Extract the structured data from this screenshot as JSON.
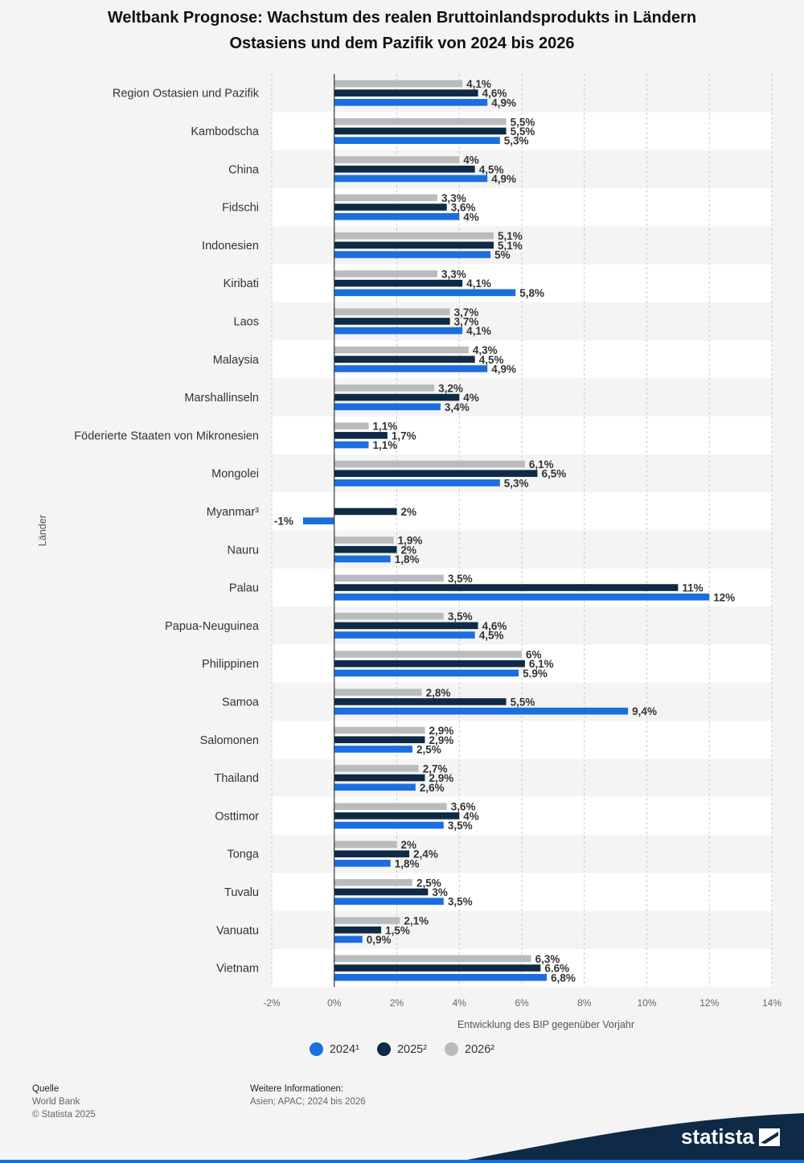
{
  "header": {
    "title_line1": "Weltbank Prognose: Wachstum des realen Bruttoinlandsprodukts in Ländern",
    "title_line2": "Ostasiens und dem Pazifik von 2024 bis 2026"
  },
  "chart_data": {
    "type": "bar",
    "orientation": "horizontal",
    "ylabel": "Länder",
    "xlabel": "Entwicklung des BIP gegenüber Vorjahr",
    "xlim": [
      -2,
      14
    ],
    "xticks": [
      "-2%",
      "0%",
      "2%",
      "4%",
      "6%",
      "8%",
      "10%",
      "12%",
      "14%"
    ],
    "grid": true,
    "legend_position": "bottom",
    "categories": [
      "Region Ostasien und Pazifik",
      "Kambodscha",
      "China",
      "Fidschi",
      "Indonesien",
      "Kiribati",
      "Laos",
      "Malaysia",
      "Marshallinseln",
      "Föderierte Staaten von Mikronesien",
      "Mongolei",
      "Myanmar³",
      "Nauru",
      "Palau",
      "Papua-Neuguinea",
      "Philippinen",
      "Samoa",
      "Salomonen",
      "Thailand",
      "Osttimor",
      "Tonga",
      "Tuvalu",
      "Vanuatu",
      "Vietnam"
    ],
    "series": [
      {
        "name": "2026²",
        "color": "#b9bcbf",
        "values": [
          4.1,
          5.5,
          4,
          3.3,
          5.1,
          3.3,
          3.7,
          4.3,
          3.2,
          1.1,
          6.1,
          null,
          1.9,
          3.5,
          3.5,
          6,
          2.8,
          2.9,
          2.7,
          3.6,
          2,
          2.5,
          2.1,
          6.3
        ],
        "labels": [
          "4,1%",
          "5,5%",
          "4%",
          "3,3%",
          "5,1%",
          "3,3%",
          "3,7%",
          "4,3%",
          "3,2%",
          "1,1%",
          "6,1%",
          "",
          "1,9%",
          "3,5%",
          "3,5%",
          "6%",
          "2,8%",
          "2,9%",
          "2,7%",
          "3,6%",
          "2%",
          "2,5%",
          "2,1%",
          "6,3%"
        ]
      },
      {
        "name": "2025²",
        "color": "#0e2a47",
        "values": [
          4.6,
          5.5,
          4.5,
          3.6,
          5.1,
          4.1,
          3.7,
          4.5,
          4,
          1.7,
          6.5,
          2,
          2,
          11,
          4.6,
          6.1,
          5.5,
          2.9,
          2.9,
          4,
          2.4,
          3,
          1.5,
          6.6
        ],
        "labels": [
          "4,6%",
          "5,5%",
          "4,5%",
          "3,6%",
          "5,1%",
          "4,1%",
          "3,7%",
          "4,5%",
          "4%",
          "1,7%",
          "6,5%",
          "2%",
          "2%",
          "11%",
          "4,6%",
          "6,1%",
          "5,5%",
          "2,9%",
          "2,9%",
          "4%",
          "2,4%",
          "3%",
          "1,5%",
          "6.6%"
        ]
      },
      {
        "name": "2024¹",
        "color": "#1a6ee0",
        "values": [
          4.9,
          5.3,
          4.9,
          4,
          5,
          5.8,
          4.1,
          4.9,
          3.4,
          1.1,
          5.3,
          -1,
          1.8,
          12,
          4.5,
          5.9,
          9.4,
          2.5,
          2.6,
          3.5,
          1.8,
          3.5,
          0.9,
          6.8
        ],
        "labels": [
          "4,9%",
          "5,3%",
          "4,9%",
          "4%",
          "5%",
          "5,8%",
          "4,1%",
          "4,9%",
          "3,4%",
          "1,1%",
          "5,3%",
          "-1%",
          "1,8%",
          "12%",
          "4,5%",
          "5.9%",
          "9,4%",
          "2,5%",
          "2,6%",
          "3,5%",
          "1,8%",
          "3,5%",
          "0,9%",
          "6,8%"
        ]
      }
    ]
  },
  "legend": {
    "items": [
      {
        "label": "2024¹",
        "color": "#1a6ee0"
      },
      {
        "label": "2025²",
        "color": "#0e2a47"
      },
      {
        "label": "2026²",
        "color": "#b9bcbf"
      }
    ]
  },
  "footer": {
    "source_heading": "Quelle",
    "source_name": "World Bank",
    "copyright": "© Statista 2025",
    "info_heading": "Weitere Informationen:",
    "info_text": "Asien; APAC; 2024 bis 2026"
  },
  "brand": {
    "name": "statista"
  }
}
